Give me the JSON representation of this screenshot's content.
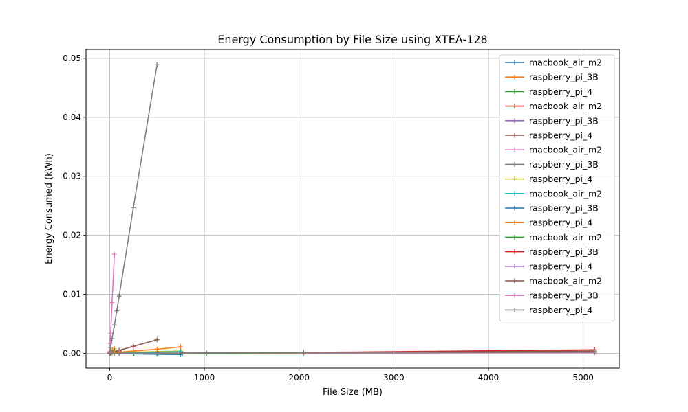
{
  "chart_data": {
    "type": "line",
    "title": "Energy Consumption by File Size using XTEA-128",
    "xlabel": "File Size (MB)",
    "ylabel": "Energy Consumed (kWh)",
    "xlim": [
      -250,
      5380
    ],
    "ylim": [
      -0.0025,
      0.0515
    ],
    "xticks": [
      0,
      1000,
      2000,
      3000,
      4000,
      5000
    ],
    "yticks": [
      0.0,
      0.01,
      0.02,
      0.03,
      0.04,
      0.05
    ],
    "xtick_labels": [
      "0",
      "1000",
      "2000",
      "3000",
      "4000",
      "5000"
    ],
    "ytick_labels": [
      "0.00",
      "0.01",
      "0.02",
      "0.03",
      "0.04",
      "0.05"
    ],
    "grid": true,
    "legend_position": "top-right",
    "marker": "plus",
    "series": [
      {
        "name": "macbook_air_m2",
        "color": "#1f77b4",
        "x": [
          1,
          5,
          10,
          25,
          50
        ],
        "y": [
          1e-05,
          3e-05,
          5e-05,
          0.0001,
          0.0002
        ]
      },
      {
        "name": "raspberry_pi_3B",
        "color": "#ff7f0e",
        "x": [
          1,
          5,
          10,
          25,
          50
        ],
        "y": [
          3e-05,
          0.0001,
          0.0002,
          0.0004,
          0.0008
        ]
      },
      {
        "name": "raspberry_pi_4",
        "color": "#2ca02c",
        "x": [
          1,
          5,
          10,
          25,
          50
        ],
        "y": [
          2e-05,
          5e-05,
          0.0001,
          0.0002,
          0.0004
        ]
      },
      {
        "name": "macbook_air_m2",
        "color": "#d62728",
        "x": [
          1,
          10,
          50,
          100
        ],
        "y": [
          1e-05,
          5e-05,
          0.0002,
          0.0004
        ]
      },
      {
        "name": "raspberry_pi_3B",
        "color": "#9467bd",
        "x": [
          1,
          10,
          50,
          100
        ],
        "y": [
          1e-05,
          4e-05,
          0.00015,
          0.0003
        ]
      },
      {
        "name": "raspberry_pi_4",
        "color": "#8c564b",
        "x": [
          10,
          50,
          100,
          250,
          500
        ],
        "y": [
          5e-05,
          0.0002,
          0.0005,
          0.0012,
          0.0023
        ]
      },
      {
        "name": "macbook_air_m2",
        "color": "#e377c2",
        "x": [
          1,
          5,
          10,
          25,
          50
        ],
        "y": [
          0.0003,
          0.0017,
          0.0034,
          0.0086,
          0.0168
        ]
      },
      {
        "name": "raspberry_pi_3B",
        "color": "#7f7f7f",
        "x": [
          1,
          10,
          25,
          50,
          75,
          100,
          250,
          500
        ],
        "y": [
          0.0001,
          0.001,
          0.0025,
          0.0048,
          0.0072,
          0.0097,
          0.0247,
          0.0489
        ]
      },
      {
        "name": "raspberry_pi_4",
        "color": "#bcbd22",
        "x": [
          1,
          50,
          100,
          250,
          500,
          750
        ],
        "y": [
          1e-05,
          5e-05,
          0.0001,
          0.0002,
          0.0003,
          0.0004
        ]
      },
      {
        "name": "macbook_air_m2",
        "color": "#17becf",
        "x": [
          1,
          50,
          100,
          250,
          500,
          750
        ],
        "y": [
          1e-05,
          4e-05,
          7e-05,
          0.00012,
          0.0002,
          0.0003
        ]
      },
      {
        "name": "raspberry_pi_3B",
        "color": "#1f77b4",
        "x": [
          1,
          50,
          100,
          250,
          500,
          750
        ],
        "y": [
          0.0,
          -3e-05,
          -5e-05,
          -0.0001,
          -0.00015,
          -0.0002
        ]
      },
      {
        "name": "raspberry_pi_4",
        "color": "#ff7f0e",
        "x": [
          1,
          50,
          100,
          250,
          500,
          750
        ],
        "y": [
          2e-05,
          0.0001,
          0.0002,
          0.0004,
          0.0007,
          0.0011
        ]
      },
      {
        "name": "macbook_air_m2",
        "color": "#2ca02c",
        "x": [
          1,
          256,
          512,
          768,
          1024,
          2048
        ],
        "y": [
          0.0,
          -3e-05,
          -4e-05,
          -5e-05,
          -6e-05,
          -7e-05
        ]
      },
      {
        "name": "raspberry_pi_3B",
        "color": "#d62728",
        "x": [
          1,
          1024,
          2048,
          5120
        ],
        "y": [
          0.0,
          7e-05,
          0.00015,
          0.0006
        ]
      },
      {
        "name": "raspberry_pi_4",
        "color": "#9467bd",
        "x": [
          1,
          1024,
          2048,
          5120
        ],
        "y": [
          0.0,
          5e-05,
          0.0001,
          0.00025
        ]
      },
      {
        "name": "macbook_air_m2",
        "color": "#8c564b",
        "x": [
          1,
          1024,
          2048,
          5120
        ],
        "y": [
          0.0,
          6e-05,
          0.00012,
          0.0004
        ]
      },
      {
        "name": "raspberry_pi_3B",
        "color": "#e377c2",
        "x": [
          1,
          1024,
          2048,
          5120
        ],
        "y": [
          0.0,
          2e-05,
          4e-05,
          0.0001
        ]
      },
      {
        "name": "raspberry_pi_4",
        "color": "#7f7f7f",
        "x": [
          1,
          1024,
          2048,
          5120
        ],
        "y": [
          0.0,
          3e-05,
          8e-05,
          0.0002
        ]
      }
    ]
  }
}
